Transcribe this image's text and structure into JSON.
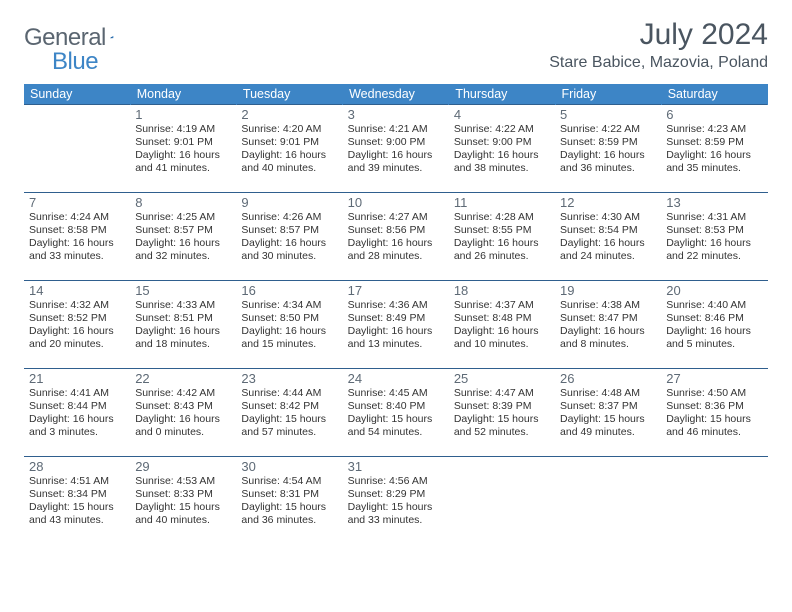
{
  "logo": {
    "text1": "General",
    "text2": "Blue"
  },
  "title": "July 2024",
  "location": "Stare Babice, Mazovia, Poland",
  "colors": {
    "header_bg": "#3d85c6",
    "header_text": "#ffffff",
    "rule": "#2f5f8e",
    "logo_gray": "#5a6570",
    "logo_blue": "#3d85c6",
    "title_gray": "#4a5560"
  },
  "day_headers": [
    "Sunday",
    "Monday",
    "Tuesday",
    "Wednesday",
    "Thursday",
    "Friday",
    "Saturday"
  ],
  "weeks": [
    [
      null,
      {
        "n": "1",
        "sr": "4:19 AM",
        "ss": "9:01 PM",
        "dl": "16 hours and 41 minutes."
      },
      {
        "n": "2",
        "sr": "4:20 AM",
        "ss": "9:01 PM",
        "dl": "16 hours and 40 minutes."
      },
      {
        "n": "3",
        "sr": "4:21 AM",
        "ss": "9:00 PM",
        "dl": "16 hours and 39 minutes."
      },
      {
        "n": "4",
        "sr": "4:22 AM",
        "ss": "9:00 PM",
        "dl": "16 hours and 38 minutes."
      },
      {
        "n": "5",
        "sr": "4:22 AM",
        "ss": "8:59 PM",
        "dl": "16 hours and 36 minutes."
      },
      {
        "n": "6",
        "sr": "4:23 AM",
        "ss": "8:59 PM",
        "dl": "16 hours and 35 minutes."
      }
    ],
    [
      {
        "n": "7",
        "sr": "4:24 AM",
        "ss": "8:58 PM",
        "dl": "16 hours and 33 minutes."
      },
      {
        "n": "8",
        "sr": "4:25 AM",
        "ss": "8:57 PM",
        "dl": "16 hours and 32 minutes."
      },
      {
        "n": "9",
        "sr": "4:26 AM",
        "ss": "8:57 PM",
        "dl": "16 hours and 30 minutes."
      },
      {
        "n": "10",
        "sr": "4:27 AM",
        "ss": "8:56 PM",
        "dl": "16 hours and 28 minutes."
      },
      {
        "n": "11",
        "sr": "4:28 AM",
        "ss": "8:55 PM",
        "dl": "16 hours and 26 minutes."
      },
      {
        "n": "12",
        "sr": "4:30 AM",
        "ss": "8:54 PM",
        "dl": "16 hours and 24 minutes."
      },
      {
        "n": "13",
        "sr": "4:31 AM",
        "ss": "8:53 PM",
        "dl": "16 hours and 22 minutes."
      }
    ],
    [
      {
        "n": "14",
        "sr": "4:32 AM",
        "ss": "8:52 PM",
        "dl": "16 hours and 20 minutes."
      },
      {
        "n": "15",
        "sr": "4:33 AM",
        "ss": "8:51 PM",
        "dl": "16 hours and 18 minutes."
      },
      {
        "n": "16",
        "sr": "4:34 AM",
        "ss": "8:50 PM",
        "dl": "16 hours and 15 minutes."
      },
      {
        "n": "17",
        "sr": "4:36 AM",
        "ss": "8:49 PM",
        "dl": "16 hours and 13 minutes."
      },
      {
        "n": "18",
        "sr": "4:37 AM",
        "ss": "8:48 PM",
        "dl": "16 hours and 10 minutes."
      },
      {
        "n": "19",
        "sr": "4:38 AM",
        "ss": "8:47 PM",
        "dl": "16 hours and 8 minutes."
      },
      {
        "n": "20",
        "sr": "4:40 AM",
        "ss": "8:46 PM",
        "dl": "16 hours and 5 minutes."
      }
    ],
    [
      {
        "n": "21",
        "sr": "4:41 AM",
        "ss": "8:44 PM",
        "dl": "16 hours and 3 minutes."
      },
      {
        "n": "22",
        "sr": "4:42 AM",
        "ss": "8:43 PM",
        "dl": "16 hours and 0 minutes."
      },
      {
        "n": "23",
        "sr": "4:44 AM",
        "ss": "8:42 PM",
        "dl": "15 hours and 57 minutes."
      },
      {
        "n": "24",
        "sr": "4:45 AM",
        "ss": "8:40 PM",
        "dl": "15 hours and 54 minutes."
      },
      {
        "n": "25",
        "sr": "4:47 AM",
        "ss": "8:39 PM",
        "dl": "15 hours and 52 minutes."
      },
      {
        "n": "26",
        "sr": "4:48 AM",
        "ss": "8:37 PM",
        "dl": "15 hours and 49 minutes."
      },
      {
        "n": "27",
        "sr": "4:50 AM",
        "ss": "8:36 PM",
        "dl": "15 hours and 46 minutes."
      }
    ],
    [
      {
        "n": "28",
        "sr": "4:51 AM",
        "ss": "8:34 PM",
        "dl": "15 hours and 43 minutes."
      },
      {
        "n": "29",
        "sr": "4:53 AM",
        "ss": "8:33 PM",
        "dl": "15 hours and 40 minutes."
      },
      {
        "n": "30",
        "sr": "4:54 AM",
        "ss": "8:31 PM",
        "dl": "15 hours and 36 minutes."
      },
      {
        "n": "31",
        "sr": "4:56 AM",
        "ss": "8:29 PM",
        "dl": "15 hours and 33 minutes."
      },
      null,
      null,
      null
    ]
  ],
  "labels": {
    "sunrise": "Sunrise:",
    "sunset": "Sunset:",
    "daylight": "Daylight:"
  }
}
